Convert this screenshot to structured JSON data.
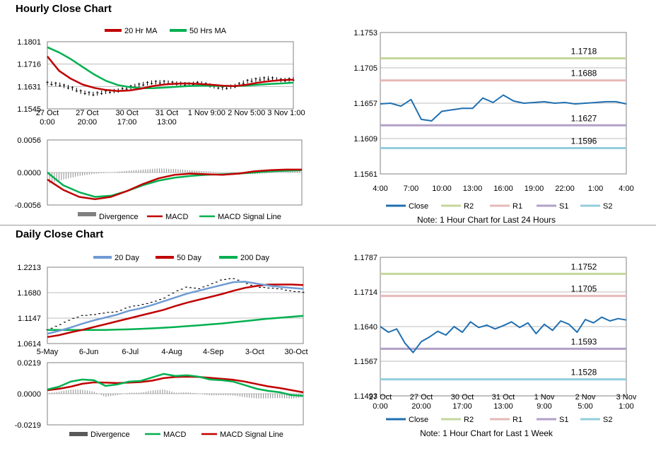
{
  "sections": {
    "hourly_title": "Hourly Close Chart",
    "daily_title": "Daily Close Chart"
  },
  "colors": {
    "red": "#c00000",
    "green": "#00b050",
    "blue": "#1f6fb0",
    "light_blue": "#6f9bd3",
    "r2": "#c4d79b",
    "r1": "#e6b9b8",
    "s1": "#b1a0c7",
    "s2": "#93cddd",
    "grid": "#bdbdbd",
    "candle": "#000000"
  },
  "chart_data": [
    {
      "id": "hourly_price",
      "type": "line",
      "legend": [
        "20 Hr MA",
        "50 Hrs MA"
      ],
      "yticks": [
        "1.1801",
        "1.1716",
        "1.1631",
        "1.1545"
      ],
      "ylim": [
        1.1545,
        1.1801
      ],
      "xticks": [
        [
          "27 Oct",
          "0:00"
        ],
        [
          "27 Oct",
          "20:00"
        ],
        [
          "30 Oct",
          "17:00"
        ],
        [
          "31 Oct",
          "13:00"
        ],
        [
          "1 Nov 9:00"
        ],
        [
          "2 Nov 5:00"
        ],
        [
          "3 Nov 1:00"
        ]
      ],
      "series": [
        {
          "name": "Close",
          "values": [
            1.1643,
            1.1638,
            1.1625,
            1.1608,
            1.1601,
            1.161,
            1.1614,
            1.1627,
            1.1638,
            1.1646,
            1.1647,
            1.1642,
            1.1638,
            1.1644,
            1.1633,
            1.1624,
            1.1632,
            1.165,
            1.1658,
            1.1662,
            1.1654,
            1.1658
          ]
        },
        {
          "name": "20 Hr MA",
          "values": [
            1.1745,
            1.169,
            1.166,
            1.1638,
            1.1625,
            1.1617,
            1.1613,
            1.1615,
            1.1622,
            1.1632,
            1.1638,
            1.1641,
            1.1642,
            1.164,
            1.1637,
            1.1633,
            1.1632,
            1.1637,
            1.1645,
            1.1651,
            1.1655,
            1.1656
          ]
        },
        {
          "name": "50 Hrs MA",
          "values": [
            1.178,
            1.176,
            1.1735,
            1.1705,
            1.1676,
            1.1652,
            1.1636,
            1.1628,
            1.1624,
            1.1624,
            1.1626,
            1.1629,
            1.1632,
            1.1633,
            1.1633,
            1.1632,
            1.1632,
            1.1634,
            1.1637,
            1.164,
            1.1642,
            1.1645
          ]
        }
      ]
    },
    {
      "id": "hourly_macd",
      "type": "line",
      "legend": [
        "Divergence",
        "MACD",
        "MACD Signal Line"
      ],
      "yticks": [
        "0.0056",
        "0.0000",
        "-0.0056"
      ],
      "ylim": [
        -0.0056,
        0.0056
      ],
      "series": [
        {
          "name": "MACD",
          "values": [
            -0.0012,
            -0.003,
            -0.0042,
            -0.0046,
            -0.0042,
            -0.0032,
            -0.002,
            -0.001,
            -0.0004,
            -0.0002,
            -0.0003,
            -0.0004,
            -0.0002,
            0.0002,
            0.0004,
            0.0005,
            0.0005
          ]
        },
        {
          "name": "MACD Signal Line",
          "values": [
            0.0,
            -0.0022,
            -0.0034,
            -0.0042,
            -0.004,
            -0.0032,
            -0.0022,
            -0.0014,
            -0.0009,
            -0.0006,
            -0.0004,
            -0.0003,
            -0.0002,
            0.0,
            0.0002,
            0.0003,
            0.0004
          ]
        },
        {
          "name": "Divergence",
          "values": [
            -0.002,
            -0.0012,
            -0.0006,
            -0.0002,
            0.0,
            0.0003,
            0.0005,
            0.0007,
            0.0006,
            0.0004,
            0.0002,
            0.0,
            -0.0002,
            -0.0003,
            -0.0001,
            0.0002,
            0.0003
          ]
        }
      ]
    },
    {
      "id": "hourly_levels",
      "type": "line",
      "legend": [
        "Close",
        "R2",
        "R1",
        "S1",
        "S2"
      ],
      "yticks": [
        "1.1753",
        "1.1705",
        "1.1657",
        "1.1609",
        "1.1561"
      ],
      "ylim": [
        1.1561,
        1.1753
      ],
      "xticks": [
        "4:00",
        "7:00",
        "10:00",
        "13:00",
        "16:00",
        "19:00",
        "22:00",
        "1:00",
        "4:00"
      ],
      "levels": {
        "R2": "1.1718",
        "R1": "1.1688",
        "S1": "1.1627",
        "S2": "1.1596"
      },
      "level_values": {
        "R2": 1.1718,
        "R1": 1.1688,
        "S1": 1.1627,
        "S2": 1.1596
      },
      "series": [
        {
          "name": "Close",
          "values": [
            1.1656,
            1.1657,
            1.1653,
            1.1662,
            1.1635,
            1.1633,
            1.1646,
            1.1648,
            1.165,
            1.165,
            1.1664,
            1.1658,
            1.1668,
            1.166,
            1.1657,
            1.1658,
            1.1659,
            1.1657,
            1.1658,
            1.1656,
            1.1657,
            1.1658,
            1.1659,
            1.1659,
            1.1656
          ]
        }
      ],
      "note": "Note: 1 Hour Chart for Last 24 Hours"
    },
    {
      "id": "daily_price",
      "type": "line",
      "legend": [
        "20 Day",
        "50 Day",
        "200 Day"
      ],
      "yticks": [
        "1.2213",
        "1.1680",
        "1.1147",
        "1.0614"
      ],
      "ylim": [
        1.0614,
        1.2213
      ],
      "xticks": [
        "5-May",
        "6-Jun",
        "6-Jul",
        "4-Aug",
        "4-Sep",
        "3-Oct",
        "30-Oct"
      ],
      "series": [
        {
          "name": "Close",
          "values": [
            1.09,
            1.1,
            1.112,
            1.12,
            1.122,
            1.126,
            1.128,
            1.138,
            1.142,
            1.148,
            1.156,
            1.17,
            1.18,
            1.176,
            1.185,
            1.195,
            1.198,
            1.188,
            1.18,
            1.178,
            1.176,
            1.171,
            1.169
          ]
        },
        {
          "name": "20 Day",
          "values": [
            1.082,
            1.088,
            1.095,
            1.103,
            1.11,
            1.116,
            1.122,
            1.13,
            1.135,
            1.142,
            1.15,
            1.158,
            1.166,
            1.172,
            1.178,
            1.184,
            1.19,
            1.191,
            1.187,
            1.183,
            1.18,
            1.178,
            1.176
          ]
        },
        {
          "name": "50 Day",
          "values": [
            1.075,
            1.079,
            1.085,
            1.09,
            1.096,
            1.102,
            1.108,
            1.114,
            1.12,
            1.126,
            1.132,
            1.14,
            1.147,
            1.153,
            1.159,
            1.165,
            1.172,
            1.178,
            1.182,
            1.185,
            1.185,
            1.185,
            1.184
          ]
        },
        {
          "name": "200 Day",
          "values": [
            1.09,
            1.09,
            1.09,
            1.09,
            1.09,
            1.09,
            1.0905,
            1.0912,
            1.092,
            1.0932,
            1.0945,
            1.096,
            1.0978,
            1.0995,
            1.1015,
            1.1035,
            1.106,
            1.1085,
            1.111,
            1.1135,
            1.1155,
            1.1175,
            1.1195
          ]
        }
      ]
    },
    {
      "id": "daily_macd",
      "type": "line",
      "legend": [
        "Divergence",
        "MACD",
        "MACD Signal Line"
      ],
      "yticks": [
        "0.0219",
        "0.0000",
        "-0.0219"
      ],
      "ylim": [
        -0.0219,
        0.0219
      ],
      "series": [
        {
          "name": "MACD",
          "values": [
            0.003,
            0.005,
            0.0085,
            0.01,
            0.0095,
            0.0055,
            0.0065,
            0.0085,
            0.009,
            0.0115,
            0.014,
            0.0125,
            0.013,
            0.012,
            0.01,
            0.0095,
            0.0085,
            0.006,
            0.0035,
            0.002,
            0.001,
            -0.001,
            -0.0015
          ]
        },
        {
          "name": "MACD Signal Line",
          "values": [
            0.0025,
            0.0035,
            0.005,
            0.007,
            0.008,
            0.0078,
            0.0075,
            0.0078,
            0.0082,
            0.0092,
            0.011,
            0.0118,
            0.012,
            0.0118,
            0.0112,
            0.0105,
            0.0098,
            0.0085,
            0.0068,
            0.0052,
            0.004,
            0.0025,
            0.001
          ]
        },
        {
          "name": "Divergence",
          "values": [
            0.0005,
            0.0015,
            0.003,
            0.0028,
            0.0015,
            -0.0022,
            -0.001,
            0.0007,
            0.0008,
            0.0023,
            0.003,
            0.0007,
            0.001,
            0.0002,
            -0.0012,
            -0.001,
            -0.0013,
            -0.0025,
            -0.0033,
            -0.0032,
            -0.003,
            -0.0035,
            -0.0025
          ]
        }
      ]
    },
    {
      "id": "daily_levels",
      "type": "line",
      "legend": [
        "Close",
        "R2",
        "R1",
        "S1",
        "S2"
      ],
      "yticks": [
        "1.1787",
        "1.1714",
        "1.1640",
        "1.1567",
        "1.1493"
      ],
      "ylim": [
        1.1493,
        1.1787
      ],
      "xticks": [
        [
          "27 Oct",
          "0:00"
        ],
        [
          "27 Oct",
          "20:00"
        ],
        [
          "30 Oct",
          "17:00"
        ],
        [
          "31 Oct",
          "13:00"
        ],
        [
          "1 Nov",
          "9:00"
        ],
        [
          "2 Nov",
          "5:00"
        ],
        [
          "3 Nov",
          "1:00"
        ]
      ],
      "levels": {
        "R2": "1.1752",
        "R1": "1.1705",
        "S1": "1.1593",
        "S2": "1.1528"
      },
      "level_values": {
        "R2": 1.1752,
        "R1": 1.1705,
        "S1": 1.1593,
        "S2": 1.1528
      },
      "series": [
        {
          "name": "Close",
          "values": [
            1.164,
            1.1628,
            1.1635,
            1.1605,
            1.1585,
            1.1608,
            1.1618,
            1.163,
            1.1622,
            1.164,
            1.1628,
            1.165,
            1.1638,
            1.1643,
            1.1635,
            1.1642,
            1.165,
            1.1638,
            1.1648,
            1.1625,
            1.1645,
            1.1632,
            1.1652,
            1.1645,
            1.1628,
            1.1655,
            1.1648,
            1.166,
            1.1652,
            1.1657,
            1.1654
          ]
        }
      ],
      "note": "Note: 1 Hour Chart for Last 1 Week"
    }
  ]
}
